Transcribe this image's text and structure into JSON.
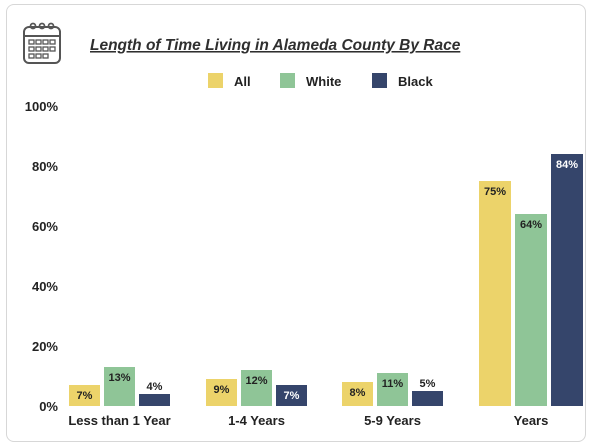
{
  "header": {
    "icon": "calendar-icon"
  },
  "chart_data": {
    "type": "bar",
    "title": "Length of Time Living in Alameda County By Race",
    "categories": [
      "Less than 1 Year",
      "1-4 Years",
      "5-9 Years",
      "Years"
    ],
    "series": [
      {
        "name": "All",
        "color": "#ecd36a",
        "values": [
          7,
          9,
          8,
          75
        ],
        "labels": [
          "7%",
          "9%",
          "8%",
          "75%"
        ]
      },
      {
        "name": "White",
        "color": "#8fc597",
        "values": [
          13,
          12,
          11,
          64
        ],
        "labels": [
          "13%",
          "12%",
          "11%",
          "64%"
        ]
      },
      {
        "name": "Black",
        "color": "#35456b",
        "values": [
          4,
          7,
          5,
          84
        ],
        "labels": [
          "4%",
          "7%",
          "5%",
          "84%"
        ]
      }
    ],
    "ylim": [
      0,
      100
    ],
    "yticks": [
      "0%",
      "20%",
      "40%",
      "60%",
      "80%",
      "100%"
    ],
    "grid": false,
    "legend_position": "top-center"
  }
}
